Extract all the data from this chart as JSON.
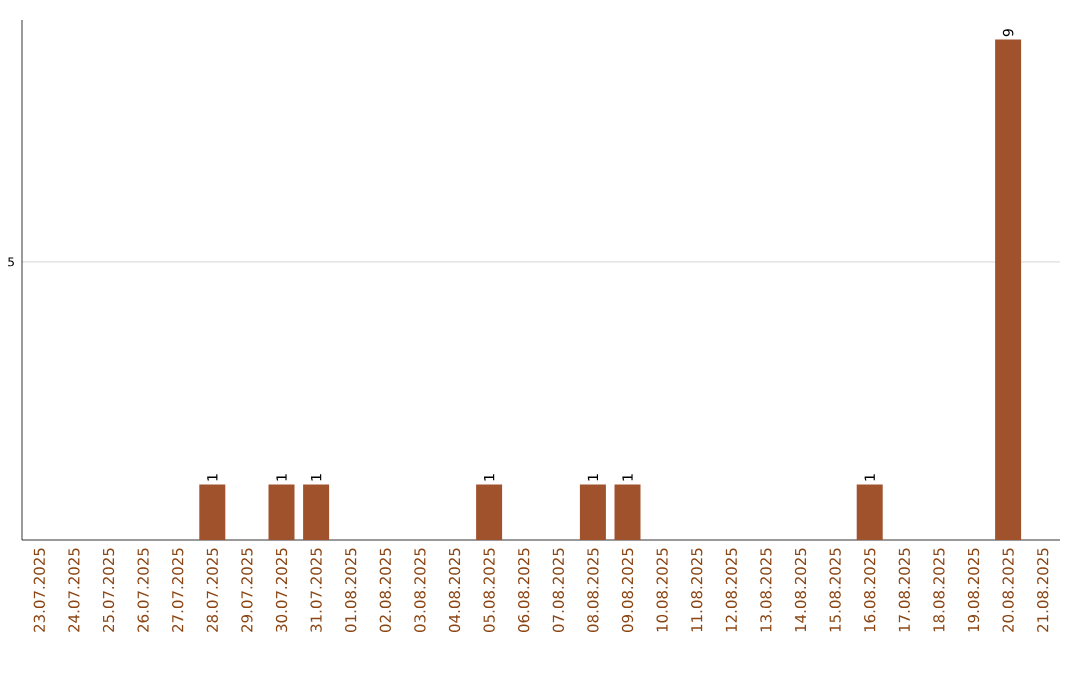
{
  "chart_data": {
    "type": "bar",
    "categories": [
      "23.07.2025",
      "24.07.2025",
      "25.07.2025",
      "26.07.2025",
      "27.07.2025",
      "28.07.2025",
      "29.07.2025",
      "30.07.2025",
      "31.07.2025",
      "01.08.2025",
      "02.08.2025",
      "03.08.2025",
      "04.08.2025",
      "05.08.2025",
      "06.08.2025",
      "07.08.2025",
      "08.08.2025",
      "09.08.2025",
      "10.08.2025",
      "11.08.2025",
      "12.08.2025",
      "13.08.2025",
      "14.08.2025",
      "15.08.2025",
      "16.08.2025",
      "17.08.2025",
      "18.08.2025",
      "19.08.2025",
      "20.08.2025",
      "21.08.2025"
    ],
    "values": [
      0,
      0,
      0,
      0,
      0,
      1,
      0,
      1,
      1,
      0,
      0,
      0,
      0,
      1,
      0,
      0,
      1,
      1,
      0,
      0,
      0,
      0,
      0,
      0,
      1,
      0,
      0,
      0,
      9,
      0
    ],
    "value_labels": [
      null,
      null,
      null,
      null,
      null,
      "1",
      null,
      "1",
      "1",
      null,
      null,
      null,
      null,
      "1",
      null,
      null,
      "1",
      "1",
      null,
      null,
      null,
      null,
      null,
      null,
      "1",
      null,
      null,
      null,
      "9",
      null
    ],
    "color": "#a0522d",
    "ylim": [
      0,
      9.35
    ],
    "yticks": [
      5
    ],
    "grid": "y"
  }
}
